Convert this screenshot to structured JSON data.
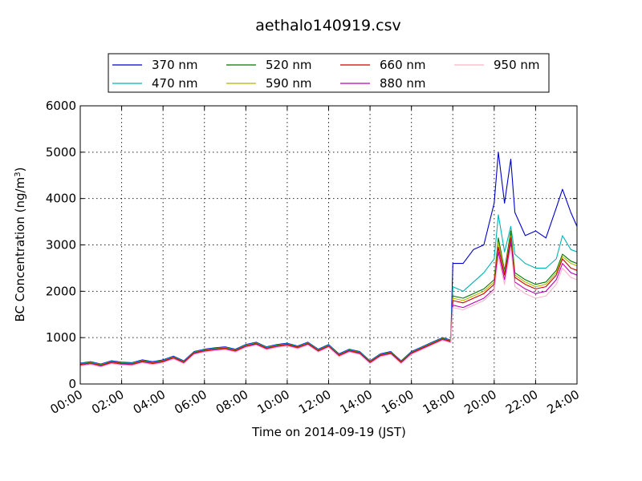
{
  "chart_data": {
    "type": "line",
    "title": "aethalo140919.csv",
    "xlabel": "Time on 2014-09-19 (JST)",
    "ylabel_main": "BC Concentration (ng/m",
    "ylabel_sup": "3",
    "ylabel_close": ")",
    "xlim": [
      0,
      24
    ],
    "ylim": [
      0,
      6000
    ],
    "grid": true,
    "legend": "top-center",
    "x_ticks": [
      0,
      2,
      4,
      6,
      8,
      10,
      12,
      14,
      16,
      18,
      20,
      22,
      24
    ],
    "x_tick_labels": [
      "00:00",
      "02:00",
      "04:00",
      "06:00",
      "08:00",
      "10:00",
      "12:00",
      "14:00",
      "16:00",
      "18:00",
      "20:00",
      "22:00",
      "24:00"
    ],
    "y_ticks": [
      0,
      1000,
      2000,
      3000,
      4000,
      5000,
      6000
    ],
    "y_tick_labels": [
      "0",
      "1000",
      "2000",
      "3000",
      "4000",
      "5000",
      "6000"
    ],
    "x": [
      0,
      0.5,
      1,
      1.5,
      2,
      2.5,
      3,
      3.5,
      4,
      4.5,
      5,
      5.5,
      6,
      6.5,
      7,
      7.5,
      8,
      8.5,
      9,
      9.5,
      10,
      10.5,
      11,
      11.5,
      12,
      12.5,
      13,
      13.5,
      14,
      14.5,
      15,
      15.5,
      16,
      16.5,
      17,
      17.5,
      17.9,
      18,
      18.5,
      19,
      19.5,
      20,
      20.2,
      20.5,
      20.8,
      21,
      21.5,
      22,
      22.5,
      23,
      23.3,
      23.7,
      24
    ],
    "series": [
      {
        "name": "370 nm",
        "color": "#0000cc",
        "values": [
          450,
          480,
          430,
          500,
          470,
          460,
          520,
          480,
          520,
          600,
          500,
          700,
          750,
          780,
          800,
          750,
          850,
          900,
          800,
          850,
          880,
          820,
          900,
          750,
          850,
          650,
          750,
          700,
          500,
          650,
          700,
          500,
          700,
          800,
          900,
          1000,
          950,
          2600,
          2600,
          2900,
          3000,
          3900,
          5000,
          3900,
          4850,
          3700,
          3200,
          3300,
          3150,
          3800,
          4200,
          3700,
          3400
        ]
      },
      {
        "name": "470 nm",
        "color": "#00b4b4",
        "values": [
          440,
          470,
          420,
          490,
          460,
          450,
          510,
          470,
          510,
          590,
          490,
          690,
          740,
          770,
          790,
          740,
          840,
          890,
          790,
          840,
          870,
          810,
          890,
          740,
          840,
          640,
          740,
          690,
          490,
          640,
          690,
          490,
          690,
          790,
          890,
          990,
          940,
          2100,
          2000,
          2200,
          2400,
          2700,
          3650,
          2850,
          3400,
          2800,
          2600,
          2500,
          2500,
          2700,
          3200,
          2900,
          2850
        ]
      },
      {
        "name": "520 nm",
        "color": "#007700",
        "values": [
          430,
          460,
          410,
          480,
          450,
          440,
          500,
          460,
          500,
          580,
          480,
          680,
          730,
          760,
          780,
          730,
          830,
          880,
          780,
          830,
          860,
          800,
          880,
          730,
          830,
          630,
          730,
          680,
          480,
          630,
          680,
          480,
          680,
          780,
          880,
          980,
          930,
          1900,
          1850,
          1950,
          2050,
          2250,
          3150,
          2450,
          3300,
          2400,
          2250,
          2150,
          2200,
          2450,
          2800,
          2650,
          2600
        ]
      },
      {
        "name": "590 nm",
        "color": "#b4b400",
        "values": [
          425,
          455,
          405,
          475,
          445,
          435,
          495,
          455,
          495,
          575,
          475,
          675,
          725,
          755,
          775,
          725,
          825,
          875,
          775,
          825,
          855,
          795,
          875,
          725,
          825,
          625,
          725,
          675,
          475,
          625,
          675,
          475,
          675,
          775,
          875,
          975,
          925,
          1850,
          1800,
          1900,
          2000,
          2200,
          3050,
          2400,
          3200,
          2350,
          2200,
          2100,
          2150,
          2400,
          2750,
          2600,
          2550
        ]
      },
      {
        "name": "660 nm",
        "color": "#cc0000",
        "values": [
          420,
          450,
          400,
          470,
          440,
          430,
          490,
          450,
          490,
          570,
          470,
          670,
          720,
          750,
          770,
          720,
          820,
          870,
          770,
          820,
          850,
          790,
          870,
          720,
          820,
          620,
          720,
          670,
          470,
          620,
          670,
          470,
          670,
          770,
          870,
          970,
          920,
          1800,
          1750,
          1850,
          1950,
          2150,
          2950,
          2350,
          3150,
          2300,
          2150,
          2050,
          2100,
          2350,
          2700,
          2500,
          2450
        ]
      },
      {
        "name": "880 nm",
        "color": "#bb00bb",
        "values": [
          400,
          430,
          380,
          450,
          420,
          410,
          470,
          430,
          470,
          550,
          450,
          650,
          700,
          730,
          750,
          700,
          800,
          850,
          750,
          800,
          830,
          770,
          850,
          700,
          800,
          600,
          700,
          650,
          450,
          600,
          650,
          450,
          650,
          750,
          850,
          950,
          900,
          1700,
          1650,
          1750,
          1850,
          2050,
          2850,
          2250,
          3050,
          2200,
          2050,
          1950,
          2000,
          2250,
          2600,
          2400,
          2350
        ]
      },
      {
        "name": "950 nm",
        "color": "#ffb4c8",
        "values": [
          390,
          420,
          370,
          440,
          410,
          400,
          460,
          420,
          460,
          540,
          440,
          640,
          690,
          720,
          740,
          690,
          790,
          840,
          740,
          790,
          820,
          760,
          840,
          690,
          790,
          590,
          690,
          640,
          440,
          590,
          640,
          440,
          640,
          740,
          840,
          940,
          890,
          1650,
          1600,
          1700,
          1800,
          2000,
          2750,
          2150,
          2950,
          2100,
          1950,
          1850,
          1900,
          2150,
          2500,
          2300,
          2250
        ]
      }
    ]
  }
}
